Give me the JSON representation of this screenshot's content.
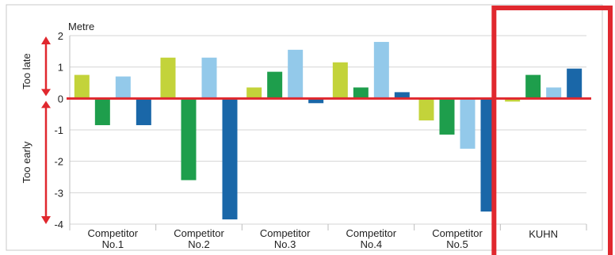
{
  "chart_data": {
    "type": "bar",
    "unit_label": "Metre",
    "side_labels": {
      "upper": "Too late",
      "lower": "Too early"
    },
    "categories": [
      [
        "Competitor",
        "No.1"
      ],
      [
        "Competitor",
        "No.2"
      ],
      [
        "Competitor",
        "No.3"
      ],
      [
        "Competitor",
        "No.4"
      ],
      [
        "Competitor",
        "No.5"
      ],
      [
        "KUHN"
      ]
    ],
    "series": [
      {
        "color": "#c3d33a",
        "values": [
          0.75,
          1.3,
          0.35,
          1.15,
          -0.7,
          -0.1
        ]
      },
      {
        "color": "#1e9e4c",
        "values": [
          -0.85,
          -2.6,
          0.85,
          0.35,
          -1.15,
          0.75
        ]
      },
      {
        "color": "#93c9ea",
        "values": [
          0.7,
          1.3,
          1.55,
          1.8,
          -1.6,
          0.35
        ]
      },
      {
        "color": "#1a67a8",
        "values": [
          -0.85,
          -3.85,
          -0.15,
          0.2,
          -3.6,
          0.95
        ]
      }
    ],
    "yticks": [
      2,
      1,
      0,
      -1,
      -2,
      -3,
      -4
    ],
    "ylim": [
      -4,
      2
    ],
    "grid": true,
    "zero_line_color": "#e0282e",
    "highlight_color": "#e0282e",
    "highlight_category": "KUHN"
  }
}
